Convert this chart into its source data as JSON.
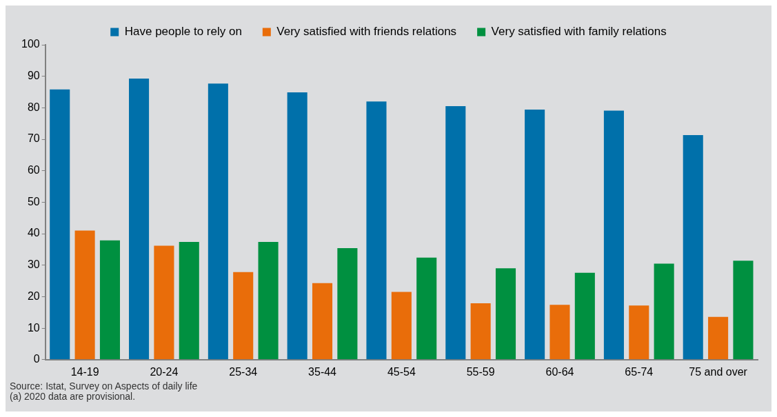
{
  "chart_data": {
    "type": "bar",
    "categories": [
      "14-19",
      "20-24",
      "25-34",
      "35-44",
      "45-54",
      "55-59",
      "60-64",
      "65-74",
      "75 and over"
    ],
    "series": [
      {
        "name": "Have people to rely on",
        "color": "#0070aa",
        "values": [
          85.8,
          89.3,
          87.7,
          84.9,
          82.0,
          80.5,
          79.4,
          79.1,
          71.3
        ]
      },
      {
        "name": "Very satisfied with friends relations",
        "color": "#e96d0a",
        "values": [
          41.0,
          36.2,
          27.8,
          24.3,
          21.5,
          17.9,
          17.4,
          17.2,
          13.6
        ]
      },
      {
        "name": "Very satisfied with family relations",
        "color": "#009040",
        "values": [
          37.9,
          37.4,
          37.4,
          35.4,
          32.4,
          29.0,
          27.6,
          30.5,
          31.4
        ]
      }
    ],
    "ylim": [
      0,
      100
    ],
    "yticks": [
      0,
      10,
      20,
      30,
      40,
      50,
      60,
      70,
      80,
      90,
      100
    ],
    "grid": false,
    "legend": "top",
    "annotations": [
      "Source: Istat, Survey on Aspects of daily life",
      "(a) 2020 data are provisional."
    ]
  }
}
